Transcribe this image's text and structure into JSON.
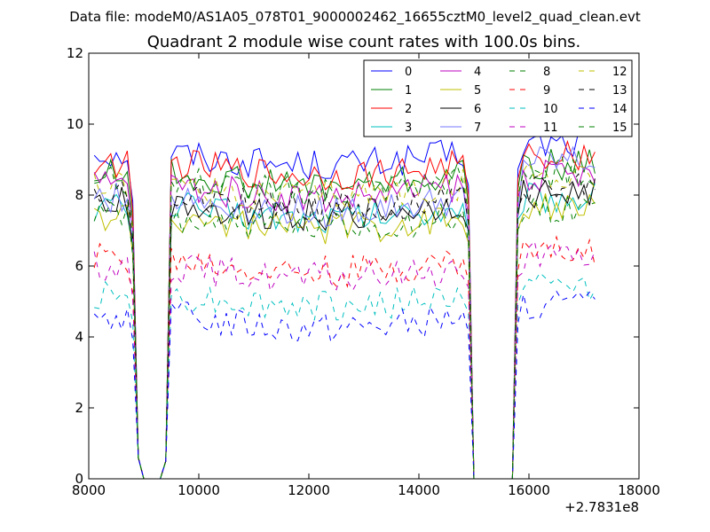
{
  "chart_data": {
    "type": "line",
    "suptitle": "Data file: modeM0/AS1A05_078T01_9000002462_16655cztM0_level2_quad_clean.evt",
    "title": "Quadrant 2 module wise count rates with 100.0s bins.",
    "xlabel": "",
    "ylabel": "",
    "x_offset_label": "+2.7831e8",
    "xlim": [
      8000,
      18000
    ],
    "ylim": [
      0,
      12
    ],
    "xticks": [
      8000,
      10000,
      12000,
      14000,
      16000,
      18000
    ],
    "yticks": [
      0,
      2,
      4,
      6,
      8,
      10,
      12
    ],
    "grid": false,
    "legend_position": "top-right",
    "legend_columns": 4,
    "x_range": [
      8100,
      17200
    ],
    "bin_width": 100,
    "gaps": [
      [
        8900,
        9400
      ],
      [
        15000,
        15700
      ]
    ],
    "series": [
      {
        "name": "0",
        "color": "#0000ff",
        "dash": "solid",
        "level": 9.2
      },
      {
        "name": "1",
        "color": "#008000",
        "dash": "solid",
        "level": 8.6
      },
      {
        "name": "2",
        "color": "#ff0000",
        "dash": "solid",
        "level": 8.9
      },
      {
        "name": "3",
        "color": "#00bfbf",
        "dash": "solid",
        "level": 7.7
      },
      {
        "name": "4",
        "color": "#bf00bf",
        "dash": "solid",
        "level": 8.3
      },
      {
        "name": "5",
        "color": "#bfbf00",
        "dash": "solid",
        "level": 7.4
      },
      {
        "name": "6",
        "color": "#000000",
        "dash": "solid",
        "level": 7.8
      },
      {
        "name": "7",
        "color": "#7777ff",
        "dash": "solid",
        "level": 7.9
      },
      {
        "name": "8",
        "color": "#008000",
        "dash": "dashed",
        "level": 7.4
      },
      {
        "name": "9",
        "color": "#ff0000",
        "dash": "dashed",
        "level": 6.2
      },
      {
        "name": "10",
        "color": "#00bfbf",
        "dash": "dashed",
        "level": 5.2
      },
      {
        "name": "11",
        "color": "#bf00bf",
        "dash": "dashed",
        "level": 6.0
      },
      {
        "name": "12",
        "color": "#bfbf00",
        "dash": "dashed",
        "level": 8.3
      },
      {
        "name": "13",
        "color": "#000000",
        "dash": "dashed",
        "level": 8.0
      },
      {
        "name": "14",
        "color": "#0000ff",
        "dash": "dashed",
        "level": 4.6
      },
      {
        "name": "15",
        "color": "#008000",
        "dash": "dashed",
        "level": 8.4
      }
    ]
  }
}
